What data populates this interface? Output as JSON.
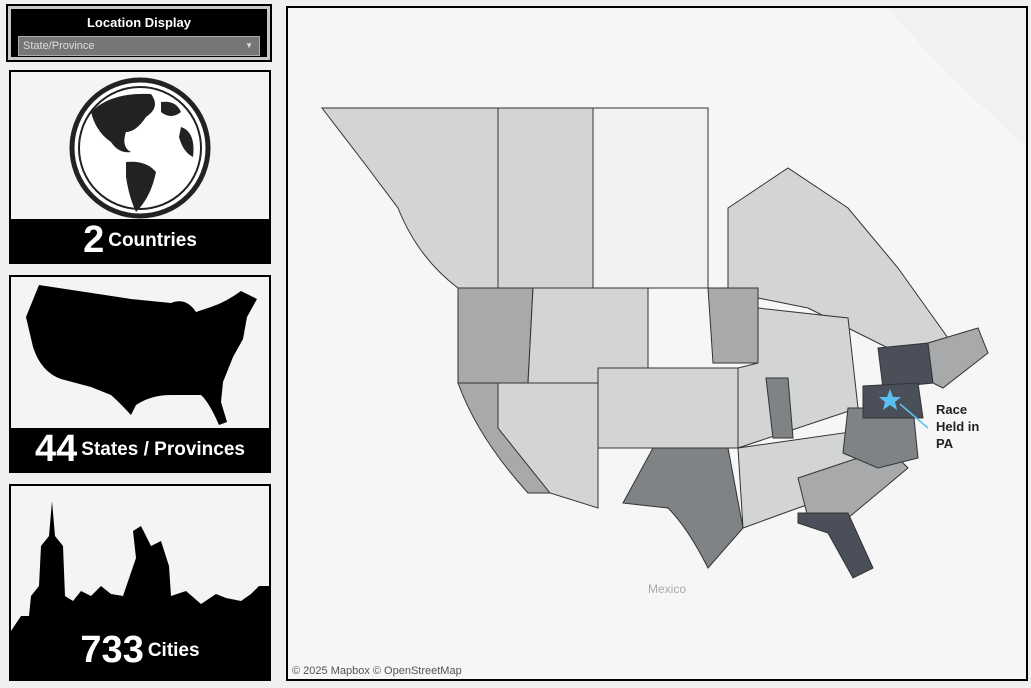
{
  "filter": {
    "title": "Location Display",
    "selected": "State/Province"
  },
  "cards": [
    {
      "value": "2",
      "label": "Countries",
      "icon": "globe-icon"
    },
    {
      "value": "44",
      "label": "States / Provinces",
      "icon": "usa-map-icon"
    },
    {
      "value": "733",
      "label": "Cities",
      "icon": "city-skyline-icon"
    }
  ],
  "map": {
    "attribution": "© 2025 Mapbox  © OpenStreetMap",
    "country_label": "Mexico",
    "annotation": [
      "Race",
      "Held in",
      "PA"
    ],
    "marker": "star-icon",
    "colors": {
      "highlight": "#4a4f5a",
      "marker": "#5bc0f0",
      "light": "#d3d4d4",
      "mid": "#a7a9aa",
      "dark": "#7f8386"
    }
  }
}
